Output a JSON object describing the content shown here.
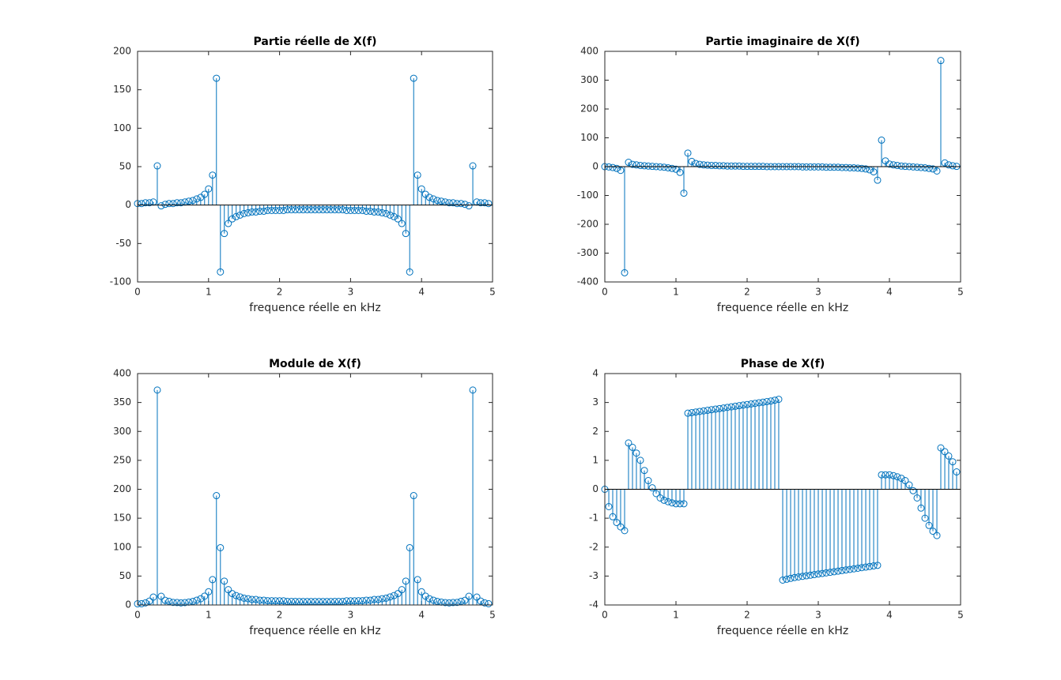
{
  "chart_data": [
    {
      "type": "stem",
      "title": "Partie réelle de X(f)",
      "xlabel": "frequence réelle en kHz",
      "color": "#0072bd",
      "xlim": [
        0,
        5
      ],
      "xticks": [
        0,
        1,
        2,
        3,
        4,
        5
      ],
      "ylim": [
        -100,
        200
      ],
      "yticks": [
        -100,
        -50,
        0,
        50,
        100,
        150,
        200
      ],
      "x": [
        0,
        0.056,
        0.111,
        0.167,
        0.222,
        0.278,
        0.333,
        0.389,
        0.444,
        0.5,
        0.556,
        0.611,
        0.667,
        0.722,
        0.778,
        0.833,
        0.889,
        0.944,
        1,
        1.056,
        1.111,
        1.167,
        1.222,
        1.278,
        1.333,
        1.389,
        1.444,
        1.5,
        1.556,
        1.611,
        1.667,
        1.722,
        1.778,
        1.833,
        1.889,
        1.944,
        2,
        2.056,
        2.111,
        2.167,
        2.222,
        2.278,
        2.333,
        2.389,
        2.444,
        2.5,
        2.556,
        2.611,
        2.667,
        2.722,
        2.778,
        2.833,
        2.889,
        2.944,
        3,
        3.056,
        3.111,
        3.167,
        3.222,
        3.278,
        3.333,
        3.389,
        3.444,
        3.5,
        3.556,
        3.611,
        3.667,
        3.722,
        3.778,
        3.833,
        3.889,
        3.944,
        4,
        4.056,
        4.111,
        4.167,
        4.222,
        4.278,
        4.333,
        4.389,
        4.444,
        4.5,
        4.556,
        4.611,
        4.667,
        4.722,
        4.778,
        4.833,
        4.889,
        4.944
      ],
      "values": [
        2,
        2,
        3,
        3,
        4,
        51,
        -1,
        1,
        2,
        2,
        3,
        3,
        4,
        5,
        6,
        8,
        10,
        14,
        21,
        39,
        165,
        -87,
        -37,
        -24,
        -18,
        -15,
        -13,
        -11,
        -10,
        -9,
        -9,
        -8,
        -8,
        -7,
        -7,
        -7,
        -7,
        -7,
        -6,
        -6,
        -6,
        -6,
        -6,
        -6,
        -6,
        -6,
        -6,
        -6,
        -6,
        -6,
        -6,
        -6,
        -6,
        -7,
        -7,
        -7,
        -7,
        -7,
        -8,
        -8,
        -9,
        -9,
        -10,
        -11,
        -13,
        -15,
        -18,
        -24,
        -37,
        -87,
        165,
        39,
        21,
        14,
        10,
        8,
        6,
        5,
        4,
        3,
        3,
        2,
        2,
        1,
        -1,
        51,
        4,
        3,
        3,
        2
      ]
    },
    {
      "type": "stem",
      "title": "Partie imaginaire de X(f)",
      "xlabel": "frequence réelle en kHz",
      "color": "#0072bd",
      "xlim": [
        0,
        5
      ],
      "xticks": [
        0,
        1,
        2,
        3,
        4,
        5
      ],
      "ylim": [
        -400,
        400
      ],
      "yticks": [
        -400,
        -300,
        -200,
        -100,
        0,
        100,
        200,
        300,
        400
      ],
      "x": [
        0,
        0.056,
        0.111,
        0.167,
        0.222,
        0.278,
        0.333,
        0.389,
        0.444,
        0.5,
        0.556,
        0.611,
        0.667,
        0.722,
        0.778,
        0.833,
        0.889,
        0.944,
        1,
        1.056,
        1.111,
        1.167,
        1.222,
        1.278,
        1.333,
        1.389,
        1.444,
        1.5,
        1.556,
        1.611,
        1.667,
        1.722,
        1.778,
        1.833,
        1.889,
        1.944,
        2,
        2.056,
        2.111,
        2.167,
        2.222,
        2.278,
        2.333,
        2.389,
        2.444,
        2.5,
        2.556,
        2.611,
        2.667,
        2.722,
        2.778,
        2.833,
        2.889,
        2.944,
        3,
        3.056,
        3.111,
        3.167,
        3.222,
        3.278,
        3.333,
        3.389,
        3.444,
        3.5,
        3.556,
        3.611,
        3.667,
        3.722,
        3.778,
        3.833,
        3.889,
        3.944,
        4,
        4.056,
        4.111,
        4.167,
        4.222,
        4.278,
        4.333,
        4.389,
        4.444,
        4.5,
        4.556,
        4.611,
        4.667,
        4.722,
        4.778,
        4.833,
        4.889,
        4.944
      ],
      "values": [
        0,
        -1,
        -3,
        -6,
        -13,
        -368,
        15,
        8,
        6,
        4,
        3,
        2,
        1,
        0,
        -1,
        -2,
        -4,
        -6,
        -9,
        -20,
        -92,
        47,
        18,
        11,
        8,
        6,
        5,
        4,
        4,
        3,
        3,
        2,
        2,
        2,
        2,
        1,
        1,
        1,
        1,
        1,
        1,
        0,
        0,
        0,
        0,
        0,
        0,
        0,
        0,
        0,
        -1,
        -1,
        -1,
        -1,
        -1,
        -1,
        -2,
        -2,
        -2,
        -2,
        -3,
        -3,
        -4,
        -4,
        -5,
        -6,
        -8,
        -11,
        -18,
        -47,
        92,
        20,
        9,
        6,
        4,
        2,
        1,
        0,
        -1,
        -2,
        -3,
        -4,
        -6,
        -8,
        -15,
        368,
        13,
        6,
        3,
        1
      ]
    },
    {
      "type": "stem",
      "title": "Module de X(f)",
      "xlabel": "frequence réelle en kHz",
      "color": "#0072bd",
      "xlim": [
        0,
        5
      ],
      "xticks": [
        0,
        1,
        2,
        3,
        4,
        5
      ],
      "ylim": [
        0,
        400
      ],
      "yticks": [
        0,
        50,
        100,
        150,
        200,
        250,
        300,
        350,
        400
      ],
      "x": [
        0,
        0.056,
        0.111,
        0.167,
        0.222,
        0.278,
        0.333,
        0.389,
        0.444,
        0.5,
        0.556,
        0.611,
        0.667,
        0.722,
        0.778,
        0.833,
        0.889,
        0.944,
        1,
        1.056,
        1.111,
        1.167,
        1.222,
        1.278,
        1.333,
        1.389,
        1.444,
        1.5,
        1.556,
        1.611,
        1.667,
        1.722,
        1.778,
        1.833,
        1.889,
        1.944,
        2,
        2.056,
        2.111,
        2.167,
        2.222,
        2.278,
        2.333,
        2.389,
        2.444,
        2.5,
        2.556,
        2.611,
        2.667,
        2.722,
        2.778,
        2.833,
        2.889,
        2.944,
        3,
        3.056,
        3.111,
        3.167,
        3.222,
        3.278,
        3.333,
        3.389,
        3.444,
        3.5,
        3.556,
        3.611,
        3.667,
        3.722,
        3.778,
        3.833,
        3.889,
        3.944,
        4,
        4.056,
        4.111,
        4.167,
        4.222,
        4.278,
        4.333,
        4.389,
        4.444,
        4.5,
        4.556,
        4.611,
        4.667,
        4.722,
        4.778,
        4.833,
        4.889,
        4.944
      ],
      "values": [
        2,
        2.2,
        3.6,
        6.7,
        13.6,
        371.5,
        15,
        8,
        6.3,
        4.5,
        4.2,
        3.6,
        4.1,
        5,
        6.1,
        8.2,
        10.8,
        15.2,
        22.8,
        43.8,
        189,
        99,
        41.2,
        26.4,
        19.7,
        16.2,
        13.9,
        11.7,
        10.8,
        9.5,
        9.5,
        8.2,
        8.2,
        7.3,
        7.3,
        7.1,
        7.1,
        7.1,
        6.1,
        6.1,
        6.1,
        6,
        6,
        6,
        6,
        6,
        6,
        6,
        6,
        6,
        6.1,
        6.1,
        6.1,
        7.1,
        7.1,
        7.1,
        7.3,
        7.3,
        8.2,
        8.2,
        9.5,
        9.5,
        10.8,
        11.7,
        13.9,
        16.2,
        19.7,
        26.4,
        41.2,
        99,
        189,
        43.8,
        22.8,
        15.2,
        10.8,
        8.2,
        6.1,
        5,
        4.1,
        3.6,
        4.2,
        4.5,
        6.3,
        8,
        15,
        371.5,
        13.6,
        6.7,
        3.6,
        2.2
      ]
    },
    {
      "type": "stem",
      "title": "Phase de X(f)",
      "xlabel": "frequence réelle en kHz",
      "color": "#0072bd",
      "xlim": [
        0,
        5
      ],
      "xticks": [
        0,
        1,
        2,
        3,
        4,
        5
      ],
      "ylim": [
        -4,
        4
      ],
      "yticks": [
        -4,
        -3,
        -2,
        -1,
        0,
        1,
        2,
        3,
        4
      ],
      "x": [
        0,
        0.056,
        0.111,
        0.167,
        0.222,
        0.278,
        0.333,
        0.389,
        0.444,
        0.5,
        0.556,
        0.611,
        0.667,
        0.722,
        0.778,
        0.833,
        0.889,
        0.944,
        1,
        1.056,
        1.111,
        1.167,
        1.222,
        1.278,
        1.333,
        1.389,
        1.444,
        1.5,
        1.556,
        1.611,
        1.667,
        1.722,
        1.778,
        1.833,
        1.889,
        1.944,
        2,
        2.056,
        2.111,
        2.167,
        2.222,
        2.278,
        2.333,
        2.389,
        2.444,
        2.5,
        2.556,
        2.611,
        2.667,
        2.722,
        2.778,
        2.833,
        2.889,
        2.944,
        3,
        3.056,
        3.111,
        3.167,
        3.222,
        3.278,
        3.333,
        3.389,
        3.444,
        3.5,
        3.556,
        3.611,
        3.667,
        3.722,
        3.778,
        3.833,
        3.889,
        3.944,
        4,
        4.056,
        4.111,
        4.167,
        4.222,
        4.278,
        4.333,
        4.389,
        4.444,
        4.5,
        4.556,
        4.611,
        4.667,
        4.722,
        4.778,
        4.833,
        4.889,
        4.944
      ],
      "values": [
        0,
        -0.6,
        -0.95,
        -1.15,
        -1.3,
        -1.43,
        1.6,
        1.45,
        1.25,
        1.0,
        0.65,
        0.3,
        0.05,
        -0.15,
        -0.3,
        -0.38,
        -0.43,
        -0.47,
        -0.5,
        -0.5,
        -0.5,
        2.63,
        2.65,
        2.67,
        2.69,
        2.71,
        2.73,
        2.75,
        2.77,
        2.79,
        2.81,
        2.83,
        2.85,
        2.87,
        2.89,
        2.91,
        2.93,
        2.95,
        2.97,
        2.99,
        3.01,
        3.03,
        3.05,
        3.08,
        3.11,
        -3.14,
        -3.11,
        -3.08,
        -3.05,
        -3.03,
        -3.01,
        -2.99,
        -2.97,
        -2.95,
        -2.93,
        -2.91,
        -2.89,
        -2.87,
        -2.85,
        -2.83,
        -2.81,
        -2.79,
        -2.77,
        -2.75,
        -2.73,
        -2.71,
        -2.69,
        -2.67,
        -2.65,
        -2.63,
        0.5,
        0.5,
        0.5,
        0.47,
        0.43,
        0.38,
        0.3,
        0.15,
        -0.05,
        -0.3,
        -0.65,
        -1.0,
        -1.25,
        -1.45,
        -1.6,
        1.43,
        1.3,
        1.15,
        0.95,
        0.6
      ]
    }
  ]
}
